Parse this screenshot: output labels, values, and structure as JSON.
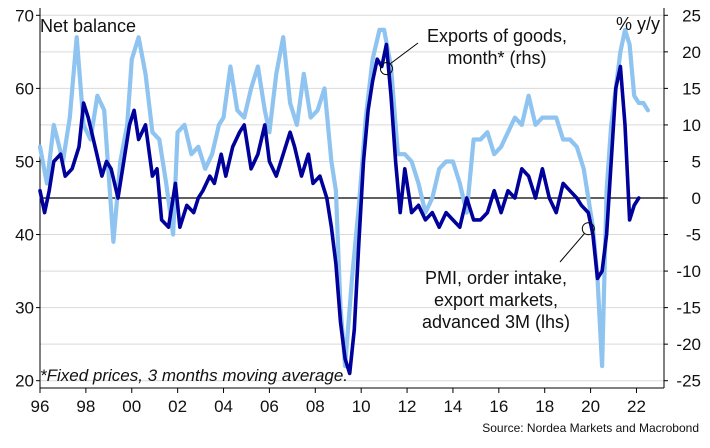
{
  "chart_data": {
    "type": "line",
    "left_axis_title": "Net balance",
    "right_axis_title": "% y/y",
    "left_ylim": [
      19,
      71
    ],
    "right_ylim": [
      -26,
      26
    ],
    "left_ticks": [
      20,
      30,
      40,
      50,
      60,
      70
    ],
    "right_ticks": [
      -25,
      -20,
      -15,
      -10,
      -5,
      0,
      5,
      10,
      15,
      20,
      25
    ],
    "xlim": [
      1996,
      2023.2
    ],
    "x_ticks": [
      {
        "value": 1996,
        "label": "96"
      },
      {
        "value": 1998,
        "label": "98"
      },
      {
        "value": 2000,
        "label": "00"
      },
      {
        "value": 2002,
        "label": "02"
      },
      {
        "value": 2004,
        "label": "04"
      },
      {
        "value": 2006,
        "label": "06"
      },
      {
        "value": 2008,
        "label": "08"
      },
      {
        "value": 2010,
        "label": "10"
      },
      {
        "value": 2012,
        "label": "12"
      },
      {
        "value": 2014,
        "label": "14"
      },
      {
        "value": 2016,
        "label": "16"
      },
      {
        "value": 2018,
        "label": "18"
      },
      {
        "value": 2020,
        "label": "20"
      },
      {
        "value": 2022,
        "label": "22"
      }
    ],
    "series": [
      {
        "name": "PMI, order intake, export markets, advanced 3M (lhs)",
        "axis": "left",
        "color": "#8fc3f0",
        "x": [
          1996.0,
          1996.3,
          1996.6,
          1997.0,
          1997.3,
          1997.6,
          1997.9,
          1998.2,
          1998.5,
          1998.8,
          1999.0,
          1999.2,
          1999.5,
          1999.8,
          2000.0,
          2000.3,
          2000.6,
          2000.9,
          2001.2,
          2001.5,
          2001.8,
          2002.0,
          2002.3,
          2002.6,
          2002.9,
          2003.2,
          2003.5,
          2003.8,
          2004.0,
          2004.3,
          2004.6,
          2004.9,
          2005.2,
          2005.5,
          2005.8,
          2006.0,
          2006.3,
          2006.6,
          2006.9,
          2007.2,
          2007.5,
          2007.8,
          2008.1,
          2008.4,
          2008.7,
          2008.9,
          2009.1,
          2009.3,
          2009.6,
          2009.9,
          2010.2,
          2010.5,
          2010.8,
          2011.0,
          2011.3,
          2011.6,
          2011.9,
          2012.2,
          2012.5,
          2012.8,
          2013.1,
          2013.4,
          2013.7,
          2014.0,
          2014.3,
          2014.6,
          2014.9,
          2015.2,
          2015.5,
          2015.8,
          2016.1,
          2016.4,
          2016.7,
          2017.0,
          2017.3,
          2017.6,
          2017.9,
          2018.2,
          2018.5,
          2018.8,
          2019.1,
          2019.4,
          2019.7,
          2019.9,
          2020.1,
          2020.3,
          2020.5,
          2020.7,
          2020.9,
          2021.1,
          2021.3,
          2021.5,
          2021.7,
          2021.9,
          2022.1,
          2022.3,
          2022.5
        ],
        "values": [
          52,
          47,
          55,
          50,
          56,
          67,
          55,
          53,
          59,
          57,
          48,
          39,
          50,
          55,
          64,
          67,
          62,
          54,
          53,
          47,
          40,
          54,
          55,
          51,
          52,
          49,
          51,
          55,
          56,
          63,
          57,
          56,
          60,
          63,
          57,
          54,
          62,
          67,
          58,
          55,
          62,
          56,
          57,
          60,
          50,
          46,
          30,
          22,
          34,
          44,
          56,
          64,
          68,
          68,
          63,
          51,
          51,
          50,
          47,
          43,
          45,
          49,
          50,
          50,
          47,
          43,
          53,
          53,
          54,
          51,
          52,
          54,
          56,
          55,
          59,
          55,
          56,
          56,
          56,
          53,
          53,
          52,
          49,
          45,
          41,
          34,
          22,
          46,
          55,
          60,
          65,
          68,
          66,
          59,
          58,
          58,
          57
        ]
      },
      {
        "name": "Exports of goods, month* (rhs)",
        "axis": "right",
        "color": "#00009a",
        "x": [
          1996.0,
          1996.2,
          1996.4,
          1996.6,
          1996.9,
          1997.1,
          1997.4,
          1997.7,
          1997.9,
          1998.1,
          1998.4,
          1998.7,
          1998.9,
          1999.1,
          1999.4,
          1999.7,
          1999.9,
          2000.1,
          2000.3,
          2000.6,
          2000.9,
          2001.1,
          2001.3,
          2001.6,
          2001.9,
          2002.1,
          2002.4,
          2002.7,
          2002.9,
          2003.1,
          2003.4,
          2003.6,
          2003.9,
          2004.1,
          2004.4,
          2004.7,
          2004.9,
          2005.2,
          2005.5,
          2005.8,
          2006.0,
          2006.3,
          2006.6,
          2006.9,
          2007.1,
          2007.4,
          2007.7,
          2007.9,
          2008.2,
          2008.5,
          2008.7,
          2008.9,
          2009.1,
          2009.3,
          2009.5,
          2009.7,
          2009.9,
          2010.1,
          2010.3,
          2010.5,
          2010.7,
          2010.9,
          2011.1,
          2011.3,
          2011.5,
          2011.7,
          2011.9,
          2012.2,
          2012.5,
          2012.8,
          2013.1,
          2013.4,
          2013.7,
          2014.0,
          2014.3,
          2014.6,
          2014.9,
          2015.2,
          2015.5,
          2015.8,
          2016.1,
          2016.4,
          2016.7,
          2017.0,
          2017.3,
          2017.6,
          2017.9,
          2018.2,
          2018.5,
          2018.8,
          2019.1,
          2019.4,
          2019.6,
          2019.9,
          2020.1,
          2020.3,
          2020.5,
          2020.7,
          2020.9,
          2021.1,
          2021.3,
          2021.5,
          2021.7,
          2021.9,
          2022.1
        ],
        "values": [
          1,
          -2,
          1,
          5,
          6,
          3,
          4,
          7,
          13,
          11,
          7,
          3,
          5,
          4,
          0,
          6,
          10,
          12,
          8,
          10,
          3,
          4,
          -3,
          -4,
          2,
          -4,
          -1,
          -2,
          0,
          1,
          3,
          2,
          6,
          3,
          7,
          9,
          10,
          4,
          6,
          10,
          5,
          3,
          6,
          9,
          7,
          3,
          6,
          2,
          3,
          0,
          -4,
          -9,
          -17,
          -22,
          -24,
          -18,
          -6,
          5,
          12,
          16,
          19,
          18,
          21,
          14,
          5,
          -2,
          4,
          -2,
          -1,
          -3,
          -2,
          -4,
          -2,
          -3,
          -4,
          0,
          -3,
          -3,
          -2,
          1,
          -2,
          1,
          0,
          4,
          3,
          0,
          4,
          0,
          -2,
          2,
          1,
          0,
          -1,
          -2,
          -5,
          -11,
          -10,
          -5,
          5,
          15,
          18,
          10,
          -3,
          -1,
          0
        ]
      }
    ],
    "annotations": [
      {
        "label_lines": [
          "Exports of goods,",
          "month* (rhs)"
        ],
        "marker_x": 2011.1,
        "marker_y": 17.7,
        "axis": "right"
      },
      {
        "label_lines": [
          "PMI, order intake,",
          "export markets,",
          "advanced 3M (lhs)"
        ],
        "marker_x": 2019.9,
        "marker_y": 40.8,
        "axis": "left"
      }
    ],
    "footnote": "*Fixed prices, 3 months moving average.",
    "source": "Source: Nordea Markets and Macrobond",
    "grid": "horizontal, right axis",
    "zero_line": true
  }
}
